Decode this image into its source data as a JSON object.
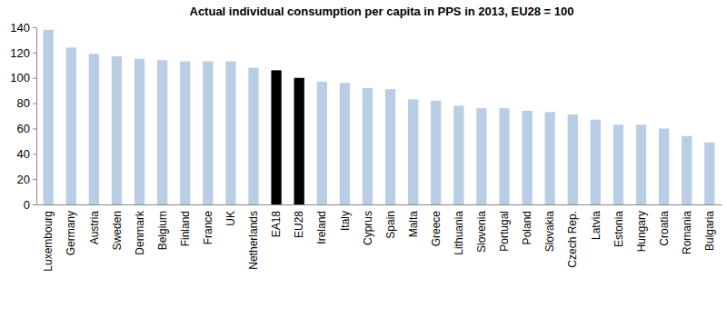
{
  "chart_data": {
    "type": "bar",
    "title": "Actual individual consumption per capita in PPS in 2013, EU28 = 100",
    "categories": [
      "Luxembourg",
      "Germany",
      "Austria",
      "Sweden",
      "Denmark",
      "Belgium",
      "Finland",
      "France",
      "UK",
      "Netherlands",
      "EA18",
      "EU28",
      "Ireland",
      "Italy",
      "Cyprus",
      "Spain",
      "Malta",
      "Greece",
      "Lithuania",
      "Slovenia",
      "Portugal",
      "Poland",
      "Slovakia",
      "Czech Rep.",
      "Latvia",
      "Estonia",
      "Hungary",
      "Croatia",
      "Romania",
      "Bulgaria"
    ],
    "values": [
      138,
      124,
      119,
      117,
      115,
      114,
      113,
      113,
      113,
      108,
      106,
      100,
      97,
      96,
      92,
      91,
      83,
      82,
      78,
      76,
      76,
      74,
      73,
      71,
      67,
      63,
      63,
      60,
      54,
      49
    ],
    "colors": [
      "#b9cde5",
      "#b9cde5",
      "#b9cde5",
      "#b9cde5",
      "#b9cde5",
      "#b9cde5",
      "#b9cde5",
      "#b9cde5",
      "#b9cde5",
      "#b9cde5",
      "#000000",
      "#000000",
      "#b9cde5",
      "#b9cde5",
      "#b9cde5",
      "#b9cde5",
      "#b9cde5",
      "#b9cde5",
      "#b9cde5",
      "#b9cde5",
      "#b9cde5",
      "#b9cde5",
      "#b9cde5",
      "#b9cde5",
      "#b9cde5",
      "#b9cde5",
      "#b9cde5",
      "#b9cde5",
      "#b9cde5",
      "#b9cde5"
    ],
    "ylim": [
      0,
      140
    ],
    "yticks": [
      0,
      20,
      40,
      60,
      80,
      100,
      120,
      140
    ],
    "grid": false
  }
}
